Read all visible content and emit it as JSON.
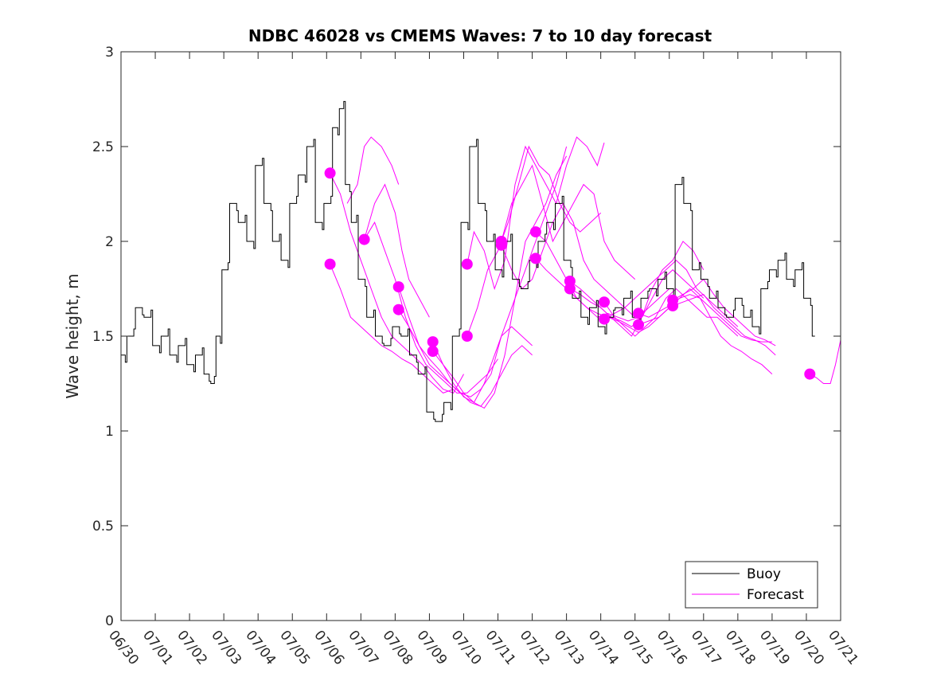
{
  "chart_data": {
    "type": "line",
    "title": "NDBC 46028 vs CMEMS Waves: 7 to 10 day forecast",
    "xlabel": "",
    "ylabel": "Wave height, m",
    "x_tick_labels": [
      "06/30",
      "07/01",
      "07/02",
      "07/03",
      "07/04",
      "07/05",
      "07/06",
      "07/07",
      "07/08",
      "07/09",
      "07/10",
      "07/11",
      "07/12",
      "07/13",
      "07/14",
      "07/15",
      "07/16",
      "07/17",
      "07/18",
      "07/19",
      "07/20",
      "07/21"
    ],
    "x_unit": "days since 06/30",
    "xlim": [
      0,
      21
    ],
    "y_ticks": [
      0,
      0.5,
      1,
      1.5,
      2,
      2.5,
      3
    ],
    "y_tick_labels": [
      "0",
      "0.5",
      "1",
      "1.5",
      "2",
      "2.5",
      "3"
    ],
    "ylim": [
      0,
      3
    ],
    "grid": false,
    "legend_position": "bottom-right",
    "legend": [
      {
        "label": "Buoy",
        "color": "#000000"
      },
      {
        "label": "Forecast",
        "color": "#ff00ff"
      }
    ],
    "colors": {
      "buoy": "#000000",
      "forecast": "#ff00ff"
    },
    "series": [
      {
        "name": "Buoy",
        "kind": "line",
        "x": [
          0.0,
          0.25,
          0.5,
          0.75,
          1.0,
          1.25,
          1.5,
          1.75,
          2.0,
          2.25,
          2.5,
          2.65,
          2.8,
          3.0,
          3.25,
          3.5,
          3.75,
          4.0,
          4.25,
          4.5,
          4.75,
          5.0,
          5.25,
          5.5,
          5.75,
          6.0,
          6.25,
          6.4,
          6.6,
          6.75,
          7.0,
          7.25,
          7.5,
          7.75,
          8.0,
          8.25,
          8.5,
          8.75,
          9.0,
          9.25,
          9.5,
          9.75,
          10.0,
          10.25,
          10.5,
          10.75,
          11.0,
          11.25,
          11.5,
          11.75,
          12.0,
          12.25,
          12.5,
          12.75,
          13.0,
          13.25,
          13.5,
          13.75,
          14.0,
          14.25,
          14.5,
          14.75,
          15.0,
          15.25,
          15.5,
          15.75,
          16.0,
          16.25,
          16.5,
          16.75,
          17.0,
          17.25,
          17.5,
          17.75,
          18.0,
          18.25,
          18.5,
          18.75,
          19.0,
          19.25,
          19.5,
          19.75,
          20.0,
          20.25
        ],
        "y": [
          1.4,
          1.5,
          1.65,
          1.6,
          1.45,
          1.5,
          1.4,
          1.45,
          1.35,
          1.4,
          1.3,
          1.25,
          1.5,
          1.85,
          2.2,
          2.1,
          2.0,
          2.4,
          2.2,
          2.0,
          1.9,
          2.2,
          2.35,
          2.5,
          2.1,
          2.2,
          2.6,
          2.7,
          2.3,
          2.1,
          1.8,
          1.6,
          1.5,
          1.45,
          1.55,
          1.5,
          1.4,
          1.3,
          1.1,
          1.05,
          1.15,
          1.5,
          2.1,
          2.5,
          2.2,
          2.0,
          1.85,
          2.0,
          1.8,
          1.75,
          1.9,
          2.0,
          2.1,
          2.2,
          1.9,
          1.7,
          1.6,
          1.65,
          1.55,
          1.6,
          1.65,
          1.7,
          1.6,
          1.7,
          1.75,
          1.8,
          1.75,
          2.3,
          2.2,
          1.85,
          1.8,
          1.7,
          1.65,
          1.6,
          1.7,
          1.6,
          1.55,
          1.75,
          1.85,
          1.9,
          1.8,
          1.85,
          1.7,
          1.5
        ]
      },
      {
        "name": "Forecast",
        "kind": "forecast",
        "x": [
          6.1,
          6.4,
          6.7,
          7.0,
          7.3,
          7.6,
          7.9,
          8.2,
          8.5,
          8.8,
          9.1,
          9.4,
          9.7,
          10.0
        ],
        "y": [
          2.36,
          2.25,
          2.05,
          1.9,
          1.75,
          1.6,
          1.5,
          1.45,
          1.4,
          1.35,
          1.28,
          1.22,
          1.2,
          1.3
        ]
      },
      {
        "name": "Forecast",
        "kind": "forecast",
        "x": [
          6.1,
          6.4,
          6.7,
          7.0,
          7.3,
          7.6,
          7.9,
          8.2,
          8.5,
          8.8,
          9.1,
          9.4,
          9.7
        ],
        "y": [
          1.88,
          1.75,
          1.6,
          1.55,
          1.5,
          1.45,
          1.42,
          1.38,
          1.35,
          1.3,
          1.25,
          1.2,
          1.22
        ]
      },
      {
        "name": "Forecast",
        "kind": "forecast",
        "x": [
          6.6,
          6.9,
          7.1,
          7.3,
          7.6,
          7.9,
          8.1
        ],
        "y": [
          2.2,
          2.3,
          2.5,
          2.55,
          2.5,
          2.4,
          2.3
        ]
      },
      {
        "name": "Forecast",
        "kind": "forecast",
        "x": [
          7.1,
          7.4,
          7.7,
          8.0,
          8.3,
          8.6,
          8.9,
          9.2,
          9.5,
          9.8,
          10.1,
          10.4,
          10.7,
          11.0
        ],
        "y": [
          2.01,
          2.1,
          1.95,
          1.8,
          1.6,
          1.45,
          1.35,
          1.3,
          1.25,
          1.2,
          1.2,
          1.25,
          1.3,
          1.38
        ]
      },
      {
        "name": "Forecast",
        "kind": "forecast",
        "x": [
          7.1,
          7.4,
          7.7,
          8.0,
          8.2,
          8.4,
          8.7,
          9.0
        ],
        "y": [
          2.01,
          2.2,
          2.3,
          2.15,
          1.95,
          1.8,
          1.7,
          1.6
        ]
      },
      {
        "name": "Forecast",
        "kind": "forecast",
        "x": [
          8.1,
          8.4,
          8.7,
          9.0,
          9.3,
          9.6,
          9.9,
          10.2,
          10.5,
          10.8,
          11.1,
          11.4,
          11.7,
          12.0
        ],
        "y": [
          1.76,
          1.6,
          1.45,
          1.35,
          1.3,
          1.25,
          1.2,
          1.15,
          1.13,
          1.2,
          1.3,
          1.4,
          1.45,
          1.4
        ]
      },
      {
        "name": "Forecast",
        "kind": "forecast",
        "x": [
          8.1,
          8.4,
          8.7,
          9.0,
          9.3,
          9.6,
          9.9,
          10.2,
          10.5,
          10.8,
          11.1,
          11.4,
          11.7,
          12.0
        ],
        "y": [
          1.64,
          1.55,
          1.45,
          1.38,
          1.32,
          1.25,
          1.2,
          1.18,
          1.22,
          1.3,
          1.5,
          1.55,
          1.5,
          1.45
        ]
      },
      {
        "name": "Forecast",
        "kind": "forecast",
        "x": [
          9.1,
          9.4,
          9.7,
          10.0,
          10.3,
          10.6,
          10.9,
          11.2,
          11.5,
          11.8,
          12.1,
          12.4,
          12.7,
          13.0
        ],
        "y": [
          1.47,
          1.35,
          1.25,
          1.18,
          1.15,
          1.12,
          1.2,
          1.4,
          1.7,
          2.0,
          2.1,
          2.2,
          2.35,
          2.45
        ]
      },
      {
        "name": "Forecast",
        "kind": "forecast",
        "x": [
          9.1,
          9.4,
          9.7,
          10.0,
          10.3,
          10.6,
          10.9,
          11.2,
          11.5,
          11.8,
          12.1,
          12.4,
          12.7,
          13.0
        ],
        "y": [
          1.42,
          1.35,
          1.28,
          1.2,
          1.15,
          1.25,
          1.4,
          1.55,
          1.7,
          1.85,
          2.0,
          2.15,
          2.3,
          2.5
        ]
      },
      {
        "name": "Forecast",
        "kind": "forecast",
        "x": [
          10.1,
          10.3,
          10.6,
          10.9,
          11.2,
          11.5,
          11.8,
          12.1,
          12.4,
          12.7,
          13.0,
          13.3,
          13.6,
          13.9,
          14.1
        ],
        "y": [
          1.88,
          2.05,
          1.95,
          1.75,
          1.9,
          2.3,
          2.5,
          2.4,
          2.3,
          2.2,
          2.4,
          2.55,
          2.5,
          2.4,
          2.52
        ]
      },
      {
        "name": "Forecast",
        "kind": "forecast",
        "x": [
          10.1,
          10.4,
          10.7,
          11.0,
          11.3,
          11.6,
          11.9,
          12.2,
          12.5,
          12.8,
          13.1,
          13.4,
          13.7,
          14.0
        ],
        "y": [
          1.5,
          1.65,
          1.85,
          1.95,
          2.1,
          2.3,
          2.5,
          2.4,
          2.35,
          2.2,
          2.1,
          2.05,
          2.1,
          2.15
        ]
      },
      {
        "name": "Forecast",
        "kind": "forecast",
        "x": [
          11.1,
          11.4,
          11.7,
          12.0,
          12.3,
          12.6,
          12.9,
          13.2,
          13.5,
          13.8,
          14.1,
          14.4,
          14.7,
          15.0
        ],
        "y": [
          2.0,
          2.2,
          2.3,
          2.4,
          2.2,
          2.0,
          2.1,
          2.2,
          2.3,
          2.25,
          2.0,
          1.9,
          1.85,
          1.8
        ]
      },
      {
        "name": "Forecast",
        "kind": "forecast",
        "x": [
          11.1,
          11.4,
          11.7,
          12.0,
          12.3,
          12.6,
          12.9,
          13.2,
          13.5,
          13.8,
          14.1,
          14.4,
          14.7,
          15.0
        ],
        "y": [
          1.98,
          1.85,
          1.75,
          1.8,
          1.95,
          2.1,
          2.2,
          2.1,
          1.9,
          1.8,
          1.75,
          1.7,
          1.65,
          1.6
        ]
      },
      {
        "name": "Forecast",
        "kind": "forecast",
        "x": [
          12.1,
          12.4,
          12.7,
          13.0,
          13.3,
          13.6,
          13.9,
          14.2,
          14.5,
          14.8,
          15.1,
          15.4,
          15.7,
          16.0
        ],
        "y": [
          2.05,
          2.0,
          1.9,
          1.8,
          1.7,
          1.65,
          1.62,
          1.6,
          1.58,
          1.55,
          1.52,
          1.55,
          1.6,
          1.65
        ]
      },
      {
        "name": "Forecast",
        "kind": "forecast",
        "x": [
          12.1,
          12.4,
          12.7,
          13.0,
          13.3,
          13.6,
          13.9,
          14.2,
          14.5,
          14.8,
          15.1,
          15.4,
          15.7,
          16.0
        ],
        "y": [
          1.91,
          1.85,
          1.8,
          1.75,
          1.7,
          1.65,
          1.6,
          1.62,
          1.6,
          1.58,
          1.6,
          1.65,
          1.7,
          1.75
        ]
      },
      {
        "name": "Forecast",
        "kind": "forecast",
        "x": [
          13.1,
          13.4,
          13.7,
          14.0,
          14.3,
          14.6,
          14.9,
          15.2,
          15.5,
          15.8,
          16.1,
          16.4,
          16.7,
          17.0
        ],
        "y": [
          1.79,
          1.75,
          1.7,
          1.65,
          1.6,
          1.58,
          1.55,
          1.6,
          1.7,
          1.8,
          1.85,
          1.8,
          1.75,
          1.7
        ]
      },
      {
        "name": "Forecast",
        "kind": "forecast",
        "x": [
          13.1,
          13.4,
          13.7,
          14.0,
          14.3,
          14.6,
          14.9,
          15.2,
          15.5,
          15.8,
          16.1,
          16.4,
          16.7,
          17.0
        ],
        "y": [
          1.75,
          1.72,
          1.68,
          1.65,
          1.6,
          1.55,
          1.5,
          1.6,
          1.75,
          1.85,
          1.9,
          2.0,
          1.95,
          1.85
        ]
      },
      {
        "name": "Forecast",
        "kind": "forecast",
        "x": [
          14.1,
          14.4,
          14.7,
          15.0,
          15.3,
          15.6,
          15.9,
          16.2,
          16.5,
          16.8,
          17.1,
          17.4,
          17.7,
          18.0
        ],
        "y": [
          1.68,
          1.6,
          1.55,
          1.5,
          1.55,
          1.6,
          1.7,
          1.75,
          1.7,
          1.65,
          1.6,
          1.6,
          1.55,
          1.5
        ]
      },
      {
        "name": "Forecast",
        "kind": "forecast",
        "x": [
          14.1,
          14.4,
          14.7,
          15.0,
          15.3,
          15.6,
          15.9,
          16.2,
          16.5,
          16.8,
          17.1,
          17.4,
          17.7,
          18.0
        ],
        "y": [
          1.59,
          1.62,
          1.65,
          1.7,
          1.75,
          1.8,
          1.85,
          1.9,
          1.85,
          1.75,
          1.7,
          1.65,
          1.6,
          1.55
        ]
      },
      {
        "name": "Forecast",
        "kind": "forecast",
        "x": [
          15.1,
          15.4,
          15.7,
          16.0,
          16.3,
          16.6,
          16.9,
          17.2,
          17.5,
          17.8,
          18.1,
          18.4,
          18.7,
          19.0
        ],
        "y": [
          1.62,
          1.6,
          1.63,
          1.66,
          1.7,
          1.72,
          1.7,
          1.65,
          1.6,
          1.55,
          1.5,
          1.48,
          1.47,
          1.47
        ]
      },
      {
        "name": "Forecast",
        "kind": "forecast",
        "x": [
          15.1,
          15.4,
          15.7,
          16.0,
          16.3,
          16.6,
          16.9,
          17.2,
          17.5,
          17.8,
          18.1,
          18.4,
          18.7,
          19.0
        ],
        "y": [
          1.56,
          1.58,
          1.6,
          1.65,
          1.7,
          1.75,
          1.7,
          1.6,
          1.5,
          1.45,
          1.42,
          1.38,
          1.35,
          1.3
        ]
      },
      {
        "name": "Forecast",
        "kind": "forecast",
        "x": [
          16.1,
          16.4,
          16.7,
          17.0,
          17.3,
          17.6,
          17.9,
          18.2,
          18.5,
          18.8,
          19.1
        ],
        "y": [
          1.69,
          1.72,
          1.75,
          1.8,
          1.72,
          1.65,
          1.6,
          1.55,
          1.5,
          1.48,
          1.45
        ]
      },
      {
        "name": "Forecast",
        "kind": "forecast",
        "x": [
          16.1,
          16.4,
          16.7,
          17.0,
          17.3,
          17.6,
          17.9,
          18.2,
          18.5,
          18.8,
          19.1
        ],
        "y": [
          1.66,
          1.68,
          1.7,
          1.72,
          1.65,
          1.6,
          1.55,
          1.5,
          1.48,
          1.45,
          1.4
        ]
      },
      {
        "name": "Forecast",
        "kind": "forecast",
        "x": [
          20.1,
          20.3,
          20.5,
          20.7,
          20.85,
          21.0
        ],
        "y": [
          1.3,
          1.28,
          1.25,
          1.25,
          1.35,
          1.48
        ]
      }
    ],
    "markers": {
      "name": "Forecast start",
      "x": [
        6.1,
        6.1,
        7.1,
        8.1,
        8.1,
        9.1,
        9.1,
        10.1,
        10.1,
        11.1,
        11.1,
        12.1,
        12.1,
        13.1,
        13.1,
        14.1,
        14.1,
        15.1,
        15.1,
        16.1,
        16.1,
        20.1
      ],
      "y": [
        2.36,
        1.88,
        2.01,
        1.76,
        1.64,
        1.47,
        1.42,
        1.88,
        1.5,
        2.0,
        1.98,
        2.05,
        1.91,
        1.79,
        1.75,
        1.68,
        1.59,
        1.62,
        1.56,
        1.69,
        1.66,
        1.3
      ]
    }
  }
}
